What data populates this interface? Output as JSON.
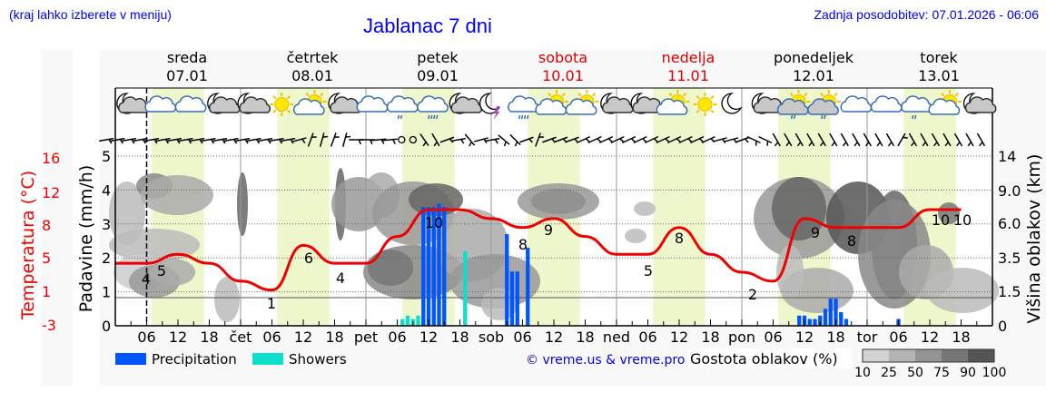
{
  "header": {
    "hint": "(kraj lahko izberete v meniju)",
    "title": "Jablanac 7 dni",
    "updated": "Zadnja posodobitev: 07.01.2026 - 06:06"
  },
  "days": [
    {
      "name": "sreda",
      "date": "07.01",
      "weekend": false
    },
    {
      "name": "četrtek",
      "date": "08.01",
      "weekend": false
    },
    {
      "name": "petek",
      "date": "09.01",
      "weekend": false
    },
    {
      "name": "sobota",
      "date": "10.01",
      "weekend": true
    },
    {
      "name": "nedelja",
      "date": "11.01",
      "weekend": true
    },
    {
      "name": "ponedeljek",
      "date": "12.01",
      "weekend": false
    },
    {
      "name": "torek",
      "date": "13.01",
      "weekend": false
    }
  ],
  "axes": {
    "left_label": "Padavine (mm/h)",
    "left_ticks": [
      "0",
      "1",
      "2",
      "3",
      "4",
      "5"
    ],
    "temp_label": "Temperatura (°C)",
    "temp_ticks": [
      "16",
      "12",
      "8",
      "5",
      "1",
      "-3"
    ],
    "right_label": "Višina oblakov (km)",
    "right_ticks": [
      "14",
      "9.0",
      "6.0",
      "3.5",
      "1.5",
      "0"
    ],
    "x_ticks": [
      "06",
      "12",
      "18",
      "čet",
      "06",
      "12",
      "18",
      "pet",
      "06",
      "12",
      "18",
      "sob",
      "06",
      "12",
      "18",
      "ned",
      "06",
      "12",
      "18",
      "pon",
      "06",
      "12",
      "18",
      "tor",
      "06",
      "12",
      "18"
    ]
  },
  "legend": {
    "precipitation": "Precipitation",
    "showers": "Showers",
    "copyright": "© vreme.us & vreme.pro",
    "cloud_density_label": "Gostota oblakov (%)",
    "density_ticks": [
      "10",
      "25",
      "50",
      "75",
      "90",
      "100"
    ]
  },
  "colors": {
    "precipitation": "#0055ff",
    "showers": "#11ddcc",
    "temperature": "#ee0000",
    "daylight": "#eef7cc",
    "link": "#0000ee",
    "weekend": "#dd0000"
  },
  "chart_data": {
    "type": "line",
    "title": "Jablanac 7 dni",
    "xlabel": "",
    "ylabel": "Padavine (mm/h)",
    "ylim": [
      0,
      5
    ],
    "y2label": "Višina oblakov (km)",
    "temp_range": [
      -3,
      16
    ],
    "series": [
      {
        "name": "Temperatura (°C)",
        "x_hours": [
          0,
          6,
          12,
          18,
          24,
          30,
          36,
          42,
          48,
          54,
          60,
          66,
          72,
          78,
          84,
          90,
          96,
          102,
          108,
          114,
          120,
          126,
          132,
          138,
          144,
          150,
          156,
          162
        ],
        "values": [
          4,
          4,
          5,
          4,
          2,
          1,
          6,
          4,
          4,
          7,
          10,
          10,
          9,
          8,
          9,
          7,
          5,
          5,
          8,
          5,
          3,
          2,
          9,
          8,
          8,
          8,
          10,
          10
        ]
      },
      {
        "name": "Precipitation",
        "x_hours": [
          59,
          60,
          61,
          62,
          63,
          75,
          76,
          77,
          79,
          131,
          132,
          133,
          134,
          135,
          136,
          137,
          138,
          139,
          140,
          150
        ],
        "values": [
          3.5,
          3.5,
          3.5,
          3.6,
          3.5,
          2.7,
          1.6,
          1.6,
          2.3,
          0.3,
          0.3,
          0.2,
          0.2,
          0.3,
          0.5,
          0.8,
          0.8,
          0.4,
          0.2,
          0.2
        ]
      },
      {
        "name": "Showers",
        "x_hours": [
          55,
          56,
          57,
          58,
          59,
          67
        ],
        "values": [
          0.2,
          0.3,
          0.2,
          0.3,
          0.2,
          2.2
        ]
      }
    ],
    "temp_labels": [
      {
        "x_hour": 6,
        "text": "4"
      },
      {
        "x_hour": 9,
        "text": "5"
      },
      {
        "x_hour": 30,
        "text": "1"
      },
      {
        "x_hour": 36,
        "text": "6"
      },
      {
        "x_hour": 43,
        "text": "4"
      },
      {
        "x_hour": 61,
        "text": "10"
      },
      {
        "x_hour": 78,
        "text": "8"
      },
      {
        "x_hour": 83,
        "text": "9"
      },
      {
        "x_hour": 102,
        "text": "5"
      },
      {
        "x_hour": 108,
        "text": "8"
      },
      {
        "x_hour": 126,
        "text": "2"
      },
      {
        "x_hour": 132,
        "text": "9"
      },
      {
        "x_hour": 138,
        "text": "8"
      },
      {
        "x_hour": 157,
        "text": "10"
      },
      {
        "x_hour": 160,
        "text": "10"
      }
    ],
    "legend_position": "bottom"
  },
  "icons": [
    "moon-cloud",
    "cloud",
    "cloud",
    "moon-cloud",
    "moon-cloud",
    "sun",
    "sun-cloud",
    "moon-cloud",
    "cloud",
    "cloud-rain",
    "cloud-rain-heavy",
    "moon-cloud",
    "moon-thunder",
    "cloud-rain-heavy",
    "sun-cloud",
    "sun-cloud",
    "moon-cloud",
    "moon-cloud",
    "sun-cloud",
    "sun",
    "moon",
    "moon-cloud",
    "sun-cloud-rain",
    "sun-cloud-rain",
    "cloud",
    "cloud",
    "cloud-rain",
    "sun-cloud",
    "moon-cloud"
  ]
}
